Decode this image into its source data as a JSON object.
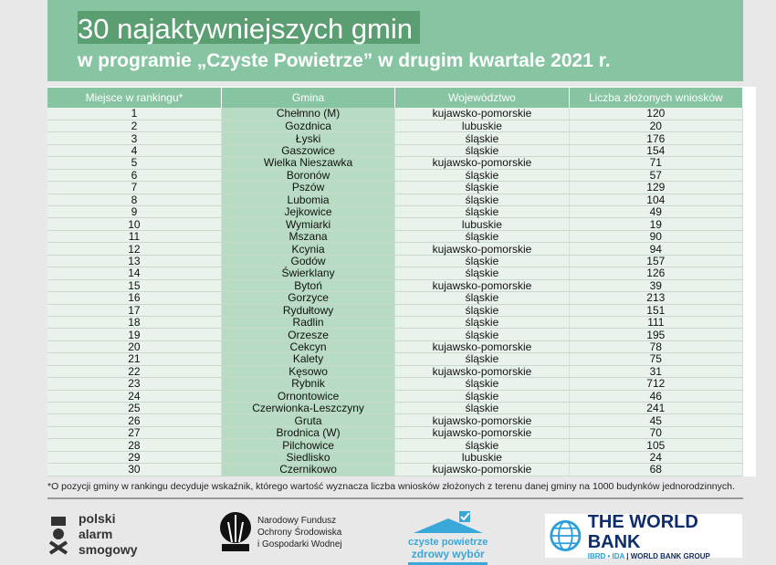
{
  "header": {
    "title": "30 najaktywniejszych gmin",
    "subtitle": "w programie „Czyste Powietrze” w drugim kwartale 2021 r."
  },
  "table": {
    "columns": [
      "Miejsce w rankingu*",
      "Gmina",
      "Województwo",
      "Liczba złożonych wniosków"
    ],
    "rows": [
      [
        "1",
        "Chełmno (M)",
        "kujawsko-pomorskie",
        "120"
      ],
      [
        "2",
        "Gozdnica",
        "lubuskie",
        "20"
      ],
      [
        "3",
        "Łyski",
        "śląskie",
        "176"
      ],
      [
        "4",
        "Gaszowice",
        "śląskie",
        "154"
      ],
      [
        "5",
        "Wielka Nieszawka",
        "kujawsko-pomorskie",
        "71"
      ],
      [
        "6",
        "Boronów",
        "śląskie",
        "57"
      ],
      [
        "7",
        "Pszów",
        "śląskie",
        "129"
      ],
      [
        "8",
        "Lubomia",
        "śląskie",
        "104"
      ],
      [
        "9",
        "Jejkowice",
        "śląskie",
        "49"
      ],
      [
        "10",
        "Wymiarki",
        "lubuskie",
        "19"
      ],
      [
        "11",
        "Mszana",
        "śląskie",
        "90"
      ],
      [
        "12",
        "Kcynia",
        "kujawsko-pomorskie",
        "94"
      ],
      [
        "13",
        "Godów",
        "śląskie",
        "157"
      ],
      [
        "14",
        "Świerklany",
        "śląskie",
        "126"
      ],
      [
        "15",
        "Bytoń",
        "kujawsko-pomorskie",
        "39"
      ],
      [
        "16",
        "Gorzyce",
        "śląskie",
        "213"
      ],
      [
        "17",
        "Rydułtowy",
        "śląskie",
        "151"
      ],
      [
        "18",
        "Radlin",
        "śląskie",
        "111"
      ],
      [
        "19",
        "Orzesze",
        "śląskie",
        "195"
      ],
      [
        "20",
        "Cekcyn",
        "kujawsko-pomorskie",
        "78"
      ],
      [
        "21",
        "Kalety",
        "śląskie",
        "75"
      ],
      [
        "22",
        "Kęsowo",
        "kujawsko-pomorskie",
        "31"
      ],
      [
        "23",
        "Rybnik",
        "śląskie",
        "712"
      ],
      [
        "24",
        "Ornontowice",
        "śląskie",
        "46"
      ],
      [
        "25",
        "Czerwionka-Leszczyny",
        "śląskie",
        "241"
      ],
      [
        "26",
        "Gruta",
        "kujawsko-pomorskie",
        "45"
      ],
      [
        "27",
        "Brodnica (W)",
        "kujawsko-pomorskie",
        "70"
      ],
      [
        "28",
        "Pilchowice",
        "śląskie",
        "105"
      ],
      [
        "29",
        "Siedlisko",
        "lubuskie",
        "24"
      ],
      [
        "30",
        "Czernikowo",
        "kujawsko-pomorskie",
        "68"
      ]
    ]
  },
  "footnote": "*O pozycji gminy w rankingu decyduje wskaźnik, którego wartość wyznacza liczba wniosków złożonych z terenu danej gminy na 1000 budynków jednorodzinnych.",
  "logos": {
    "psa": [
      "polski",
      "alarm",
      "smogowy"
    ],
    "nfosigw": [
      "Narodowy Fundusz",
      "Ochrony Środowiska",
      "i Gospodarki Wodnej"
    ],
    "cp": [
      "czyste powietrze",
      "zdrowy wybór"
    ],
    "wb": {
      "name": "THE WORLD BANK",
      "sub1": "IBRD • IDA",
      "sub2": "| WORLD BANK GROUP"
    }
  }
}
